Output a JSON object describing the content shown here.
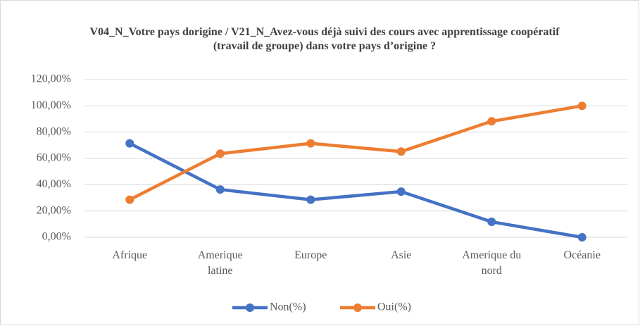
{
  "chart_data": {
    "type": "line",
    "title": "V04_N_Votre pays dorigine / V21_N_Avez-vous déjà suivi des cours avec apprentissage coopératif (travail de groupe) dans votre pays d’origine ?",
    "categories": [
      "Afrique",
      "Amerique latine",
      "Europe",
      "Asie",
      "Amerique du nord",
      "Océanie"
    ],
    "series": [
      {
        "name": "Non(%)",
        "color": "#4472c4",
        "values": [
          71.43,
          36.36,
          28.57,
          34.78,
          11.76,
          0
        ]
      },
      {
        "name": "Oui(%)",
        "color": "#ed7d31",
        "values": [
          28.57,
          63.64,
          71.43,
          65.22,
          88.24,
          100
        ]
      }
    ],
    "ylim": [
      0,
      120
    ],
    "yticks": [
      {
        "value": 0,
        "label": "0,00%"
      },
      {
        "value": 20,
        "label": "20,00%"
      },
      {
        "value": 40,
        "label": "40,00%"
      },
      {
        "value": 60,
        "label": "60,00%"
      },
      {
        "value": 80,
        "label": "80,00%"
      },
      {
        "value": 100,
        "label": "100,00%"
      },
      {
        "value": 120,
        "label": "120,00%"
      }
    ],
    "grid": true,
    "legend": "bottom"
  }
}
